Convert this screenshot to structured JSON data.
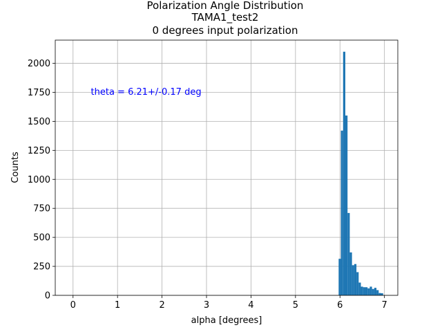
{
  "chart_data": {
    "type": "histogram",
    "title_lines": [
      "Polarization Angle Distribution",
      "TAMA1_test2",
      "0 degrees input polarization"
    ],
    "xlabel": "alpha [degrees]",
    "ylabel": "Counts",
    "xlim": [
      -0.4,
      7.3
    ],
    "ylim": [
      0,
      2200
    ],
    "xticks": [
      0,
      1,
      2,
      3,
      4,
      5,
      6,
      7
    ],
    "yticks": [
      0,
      250,
      500,
      750,
      1000,
      1250,
      1500,
      1750,
      2000
    ],
    "grid": true,
    "bar_color": "#1f77b4",
    "bin_width": 0.05,
    "bins": [
      {
        "x": 5.97,
        "count": 315
      },
      {
        "x": 6.02,
        "count": 1420
      },
      {
        "x": 6.07,
        "count": 2100
      },
      {
        "x": 6.12,
        "count": 1550
      },
      {
        "x": 6.17,
        "count": 710
      },
      {
        "x": 6.22,
        "count": 370
      },
      {
        "x": 6.27,
        "count": 260
      },
      {
        "x": 6.32,
        "count": 270
      },
      {
        "x": 6.37,
        "count": 200
      },
      {
        "x": 6.42,
        "count": 110
      },
      {
        "x": 6.47,
        "count": 75
      },
      {
        "x": 6.52,
        "count": 70
      },
      {
        "x": 6.57,
        "count": 70
      },
      {
        "x": 6.62,
        "count": 60
      },
      {
        "x": 6.67,
        "count": 75
      },
      {
        "x": 6.72,
        "count": 55
      },
      {
        "x": 6.77,
        "count": 65
      },
      {
        "x": 6.82,
        "count": 45
      },
      {
        "x": 6.87,
        "count": 20
      },
      {
        "x": 6.92,
        "count": 18
      }
    ],
    "annotation": {
      "text": "theta = 6.21+/-0.17 deg",
      "color": "#0000ff",
      "x": 0.4,
      "y": 1760
    }
  }
}
